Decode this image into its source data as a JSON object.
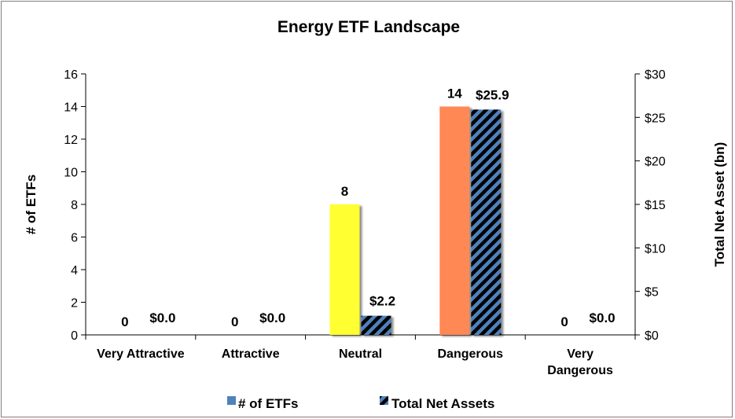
{
  "chart_data": {
    "type": "bar",
    "title": "Energy ETF Landscape",
    "categories": [
      "Very Attractive",
      "Attractive",
      "Neutral",
      "Dangerous",
      "Very Dangerous"
    ],
    "category_lines": [
      [
        "Very Attractive"
      ],
      [
        "Attractive"
      ],
      [
        "Neutral"
      ],
      [
        "Dangerous"
      ],
      [
        "Very",
        "Dangerous"
      ]
    ],
    "series": [
      {
        "name": "# of ETFs",
        "axis": "left",
        "values": [
          0,
          0,
          8,
          14,
          0
        ],
        "labels": [
          "0",
          "0",
          "8",
          "14",
          "0"
        ],
        "legend_color": "#4f81bd",
        "bar_colors": [
          "#4f81bd",
          "#4f81bd",
          "#ffff33",
          "#ff8855",
          "#4f81bd"
        ]
      },
      {
        "name": "Total Net Assets",
        "axis": "right",
        "values": [
          0.0,
          0.0,
          2.2,
          25.9,
          0.0
        ],
        "labels": [
          "$0.0",
          "$0.0",
          "$2.2",
          "$25.9",
          "$0.0"
        ],
        "color": "#4f81bd",
        "hatch_color": "#000000"
      }
    ],
    "y_left": {
      "label": "# of ETFs",
      "ylim": [
        0,
        16
      ],
      "ticks": [
        "0",
        "2",
        "4",
        "6",
        "8",
        "10",
        "12",
        "14",
        "16"
      ]
    },
    "y_right": {
      "label": "Total Net Asset (bn)",
      "ylim": [
        0,
        30
      ],
      "ticks": [
        "$0",
        "$5",
        "$10",
        "$15",
        "$20",
        "$25",
        "$30"
      ]
    },
    "legend": "bottom",
    "grid": false
  }
}
